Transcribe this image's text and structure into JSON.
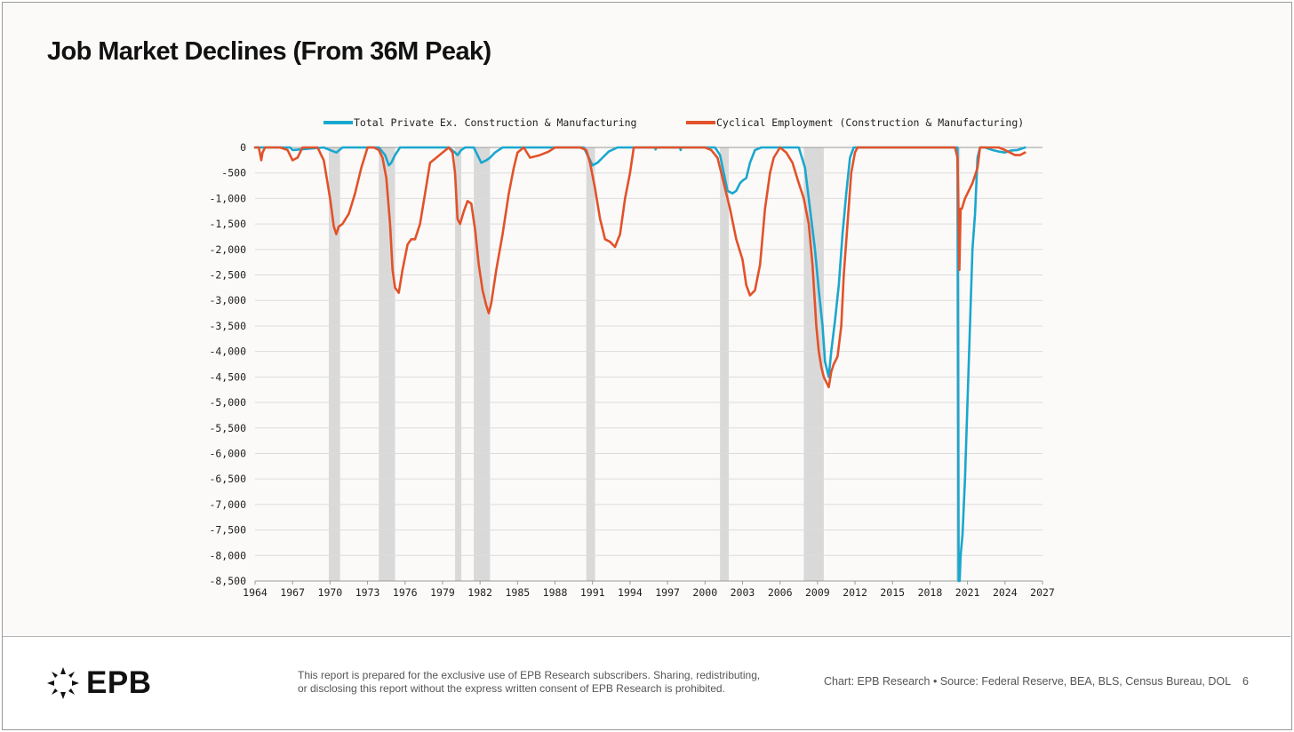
{
  "title": "Job Market Declines (From 36M Peak)",
  "colors": {
    "private": "#1aa7cf",
    "cyclical": "#e2522a",
    "recession": "#d9d9d9",
    "grid": "#dcdcdc",
    "axis": "#9a9a9a",
    "text": "#111111"
  },
  "chart_data": {
    "type": "line",
    "title": "Job Market Declines (From 36M Peak)",
    "xlabel": "",
    "ylabel": "",
    "xlim": [
      1964,
      2027
    ],
    "ylim": [
      -8500,
      0
    ],
    "y_ticks": [
      0,
      -500,
      -1000,
      -1500,
      -2000,
      -2500,
      -3000,
      -3500,
      -4000,
      -4500,
      -5000,
      -5500,
      -6000,
      -6500,
      -7000,
      -7500,
      -8000,
      -8500
    ],
    "y_tick_labels": [
      "0",
      "-500",
      "-1,000",
      "-1,500",
      "-2,000",
      "-2,500",
      "-3,000",
      "-3,500",
      "-4,000",
      "-4,500",
      "-5,000",
      "-5,500",
      "-6,000",
      "-6,500",
      "-7,000",
      "-7,500",
      "-8,000",
      "-8,500"
    ],
    "x_ticks": [
      1964,
      1967,
      1970,
      1973,
      1976,
      1979,
      1982,
      1985,
      1988,
      1991,
      1994,
      1997,
      2000,
      2003,
      2006,
      2009,
      2012,
      2015,
      2018,
      2021,
      2024,
      2027
    ],
    "x_tick_labels": [
      "1964",
      "1967",
      "1970",
      "1973",
      "1976",
      "1979",
      "1982",
      "1985",
      "1988",
      "1991",
      "1994",
      "1997",
      "2000",
      "2003",
      "2006",
      "2009",
      "2012",
      "2015",
      "2018",
      "2021",
      "2024",
      "2027"
    ],
    "grid": "horizontal",
    "legend_position": "top",
    "recessions": [
      {
        "start": 1969.9,
        "end": 1970.8
      },
      {
        "start": 1973.9,
        "end": 1975.2
      },
      {
        "start": 1980.0,
        "end": 1980.5
      },
      {
        "start": 1981.5,
        "end": 1982.8
      },
      {
        "start": 1990.5,
        "end": 1991.2
      },
      {
        "start": 2001.2,
        "end": 2001.9
      },
      {
        "start": 2007.9,
        "end": 2009.5
      },
      {
        "start": 2020.1,
        "end": 2020.4
      }
    ],
    "series": [
      {
        "name": "Total Private Ex. Construction & Manufacturing",
        "color": "#1aa7cf",
        "x": [
          1964.0,
          1966.8,
          1967.0,
          1969.5,
          1970.0,
          1970.5,
          1971.0,
          1973.9,
          1974.4,
          1974.7,
          1974.9,
          1975.2,
          1975.6,
          1976.0,
          1979.5,
          1980.0,
          1980.2,
          1980.5,
          1980.8,
          1981.5,
          1981.8,
          1982.1,
          1982.5,
          1982.8,
          1983.2,
          1983.8,
          1990.3,
          1990.7,
          1991.0,
          1991.4,
          1991.8,
          1992.3,
          1993.0,
          1996.0,
          1996.05,
          1996.1,
          1998.0,
          1998.05,
          1998.1,
          2000.8,
          2001.2,
          2001.5,
          2001.8,
          2002.2,
          2002.5,
          2002.8,
          2003.0,
          2003.3,
          2003.6,
          2004.0,
          2004.5,
          2007.5,
          2008.0,
          2008.4,
          2008.8,
          2009.1,
          2009.4,
          2009.6,
          2009.9,
          2010.1,
          2010.4,
          2010.7,
          2011.0,
          2011.3,
          2011.6,
          2011.9,
          2012.2,
          2020.0,
          2020.2,
          2020.29,
          2020.31,
          2020.37,
          2020.45,
          2020.6,
          2020.8,
          2021.0,
          2021.2,
          2021.4,
          2021.6,
          2021.8,
          2022.0,
          2022.4,
          2023.0,
          2023.5,
          2024.0,
          2024.5,
          2025.0,
          2025.6
        ],
        "values": [
          0,
          0,
          -50,
          0,
          -50,
          -100,
          0,
          0,
          -150,
          -350,
          -300,
          -150,
          0,
          0,
          0,
          -100,
          -150,
          -50,
          0,
          0,
          -150,
          -300,
          -250,
          -200,
          -100,
          0,
          0,
          -200,
          -350,
          -300,
          -200,
          -80,
          0,
          0,
          -40,
          0,
          0,
          -50,
          0,
          0,
          -150,
          -500,
          -850,
          -900,
          -850,
          -700,
          -650,
          -600,
          -300,
          -50,
          0,
          0,
          -400,
          -1200,
          -2000,
          -2800,
          -3500,
          -4200,
          -4500,
          -4000,
          -3400,
          -2700,
          -1700,
          -900,
          -200,
          0,
          0,
          0,
          0,
          -8500,
          -8500,
          -8500,
          -8000,
          -7600,
          -6500,
          -5000,
          -3500,
          -2000,
          -1300,
          -200,
          0,
          0,
          -50,
          -80,
          -100,
          -60,
          -50,
          0
        ]
      },
      {
        "name": "Cyclical Employment (Construction & Manufacturing)",
        "color": "#e2522a",
        "x": [
          1964.0,
          1964.3,
          1964.5,
          1964.6,
          1964.8,
          1966.0,
          1966.6,
          1967.0,
          1967.4,
          1967.8,
          1969.0,
          1969.5,
          1969.8,
          1970.0,
          1970.3,
          1970.5,
          1970.7,
          1971.0,
          1971.5,
          1972.0,
          1972.5,
          1973.0,
          1973.5,
          1973.9,
          1974.2,
          1974.5,
          1974.8,
          1975.0,
          1975.2,
          1975.5,
          1975.8,
          1976.2,
          1976.5,
          1976.8,
          1977.2,
          1977.6,
          1978.0,
          1979.5,
          1979.8,
          1980.0,
          1980.2,
          1980.4,
          1980.7,
          1981.0,
          1981.3,
          1981.6,
          1981.9,
          1982.2,
          1982.5,
          1982.7,
          1982.9,
          1983.3,
          1983.8,
          1984.3,
          1984.7,
          1985.0,
          1985.5,
          1986.0,
          1986.8,
          1987.5,
          1988.0,
          1989.0,
          1990.0,
          1990.5,
          1990.8,
          1991.2,
          1991.6,
          1992.0,
          1992.4,
          1992.8,
          1993.2,
          1993.6,
          1994.0,
          1994.3,
          1995.0,
          1997.0,
          1998.0,
          2000.0,
          2000.5,
          2001.0,
          2001.3,
          2001.6,
          2002.0,
          2002.5,
          2003.0,
          2003.3,
          2003.6,
          2004.0,
          2004.4,
          2004.8,
          2005.2,
          2005.5,
          2006.0,
          2006.5,
          2007.0,
          2007.5,
          2007.9,
          2008.3,
          2008.6,
          2008.9,
          2009.1,
          2009.3,
          2009.5,
          2009.7,
          2009.9,
          2010.1,
          2010.3,
          2010.6,
          2010.9,
          2011.1,
          2011.4,
          2011.7,
          2012.0,
          2012.2,
          2012.5,
          2019.0,
          2020.0,
          2020.2,
          2020.35,
          2020.45,
          2020.55,
          2020.8,
          2021.0,
          2021.4,
          2021.8,
          2022.0,
          2022.5,
          2023.0,
          2023.5,
          2024.0,
          2024.4,
          2024.8,
          2025.2,
          2025.6
        ],
        "values": [
          0,
          0,
          -250,
          -100,
          0,
          0,
          -50,
          -250,
          -200,
          0,
          0,
          -250,
          -700,
          -1000,
          -1550,
          -1700,
          -1550,
          -1500,
          -1300,
          -900,
          -400,
          0,
          0,
          -50,
          -200,
          -600,
          -1500,
          -2400,
          -2750,
          -2850,
          -2400,
          -1900,
          -1800,
          -1800,
          -1500,
          -900,
          -300,
          0,
          -100,
          -500,
          -1400,
          -1500,
          -1250,
          -1050,
          -1100,
          -1600,
          -2300,
          -2800,
          -3100,
          -3250,
          -3050,
          -2400,
          -1700,
          -900,
          -400,
          -100,
          0,
          -200,
          -150,
          -80,
          0,
          0,
          0,
          -50,
          -300,
          -800,
          -1400,
          -1800,
          -1850,
          -1950,
          -1700,
          -1000,
          -500,
          0,
          0,
          0,
          0,
          0,
          -50,
          -200,
          -500,
          -800,
          -1200,
          -1800,
          -2200,
          -2700,
          -2900,
          -2800,
          -2300,
          -1200,
          -500,
          -200,
          0,
          -100,
          -300,
          -700,
          -1000,
          -1500,
          -2300,
          -3500,
          -4000,
          -4300,
          -4500,
          -4600,
          -4700,
          -4400,
          -4250,
          -4100,
          -3500,
          -2500,
          -1500,
          -500,
          -100,
          0,
          0,
          0,
          0,
          -200,
          -2400,
          -1200,
          -1200,
          -1000,
          -900,
          -700,
          -400,
          0,
          0,
          0,
          0,
          -50,
          -100,
          -150,
          -150,
          -100
        ]
      }
    ]
  },
  "footer": {
    "logo_text": "EPB",
    "disclaimer_line1": "This report is prepared for the exclusive use of EPB Research subscribers. Sharing, redistributing,",
    "disclaimer_line2": "or disclosing this report without the express written consent of EPB Research is prohibited.",
    "source": "Chart: EPB Research  •  Source: Federal Reserve, BEA, BLS, Census Bureau, DOL",
    "page_number": "6"
  }
}
